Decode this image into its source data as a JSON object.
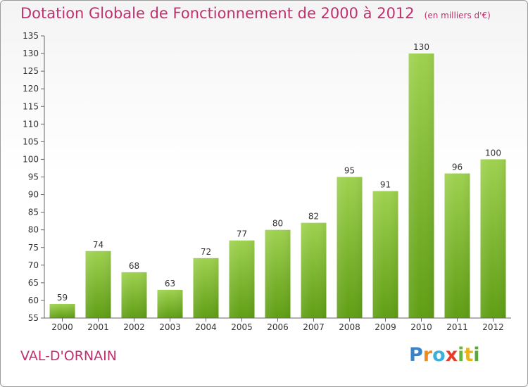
{
  "header": {
    "title": "Dotation Globale de Fonctionnement de 2000 à 2012",
    "unit_note": "(en milliers d'€)"
  },
  "commune_name": "VAL-D'ORNAIN",
  "brand": {
    "name": "Proxiti",
    "letters": [
      "P",
      "r",
      "o",
      "x",
      "i",
      "t",
      "i"
    ]
  },
  "chart_data": {
    "type": "bar",
    "categories": [
      "2000",
      "2001",
      "2002",
      "2003",
      "2004",
      "2005",
      "2006",
      "2007",
      "2008",
      "2009",
      "2010",
      "2011",
      "2012"
    ],
    "values": [
      59,
      74,
      68,
      63,
      72,
      77,
      80,
      82,
      95,
      91,
      130,
      96,
      100
    ],
    "data_labels": [
      "59",
      "74",
      "68",
      "63",
      "72",
      "77",
      "80",
      "82",
      "95",
      "91",
      "130",
      "96",
      "100"
    ],
    "ylim": [
      55,
      135
    ],
    "yticks": [
      55,
      60,
      65,
      70,
      75,
      80,
      85,
      90,
      95,
      100,
      105,
      110,
      115,
      120,
      125,
      130,
      135
    ],
    "grid": false,
    "colors": {
      "bar_top": "#9ed14f",
      "bar_bottom": "#5f9e14",
      "axis": "#666666",
      "text": "#333333",
      "accent": "#c0306e"
    }
  }
}
